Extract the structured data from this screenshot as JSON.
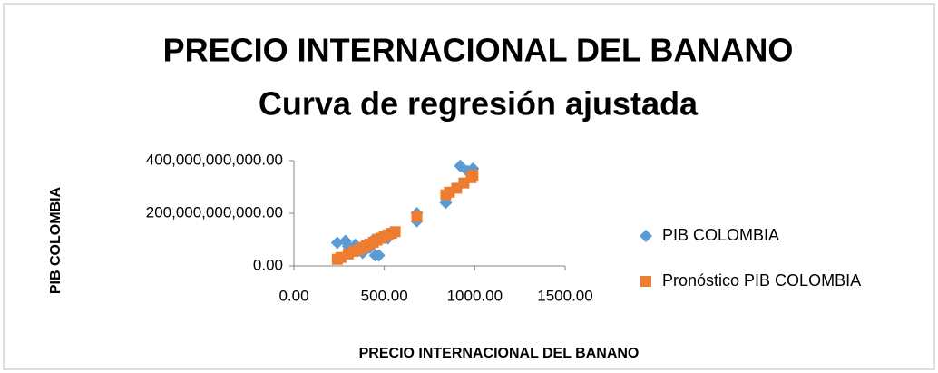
{
  "chart_data": {
    "type": "scatter",
    "title": [
      "PRECIO INTERNACIONAL DEL BANANO",
      "Curva de regresión ajustada"
    ],
    "x_label": "PRECIO INTERNACIONAL DEL BANANO",
    "y_label": "PIB COLOMBIA",
    "xlim": [
      0,
      1500
    ],
    "xticks": [
      {
        "value": 0,
        "label": "0.00"
      },
      {
        "value": 500,
        "label": "500.00"
      },
      {
        "value": 1000,
        "label": "1000.00"
      },
      {
        "value": 1500,
        "label": "1500.00"
      }
    ],
    "ylim": [
      0,
      400000000000
    ],
    "yticks": [
      {
        "value": 0,
        "label": "0.00"
      },
      {
        "value": 200000000000,
        "label": "200,000,000,000.00"
      },
      {
        "value": 400000000000,
        "label": "400,000,000,000.00"
      }
    ],
    "legend": "right",
    "series": [
      {
        "name": "PIB COLOMBIA",
        "color": "#5b9bd5",
        "marker": "diamond",
        "x": [
          240,
          285,
          300,
          340,
          380,
          420,
          440,
          450,
          470,
          490,
          520,
          530,
          680,
          680,
          840,
          850,
          920,
          960,
          990
        ],
        "values": [
          88000000000,
          95000000000,
          75000000000,
          80000000000,
          50000000000,
          70000000000,
          100000000000,
          40000000000,
          40000000000,
          110000000000,
          105000000000,
          120000000000,
          200000000000,
          170000000000,
          240000000000,
          270000000000,
          380000000000,
          360000000000,
          370000000000
        ]
      },
      {
        "name": "Pronóstico PIB COLOMBIA",
        "color": "#ed7d31",
        "marker": "square",
        "x": [
          240,
          260,
          300,
          330,
          360,
          380,
          400,
          420,
          440,
          460,
          480,
          500,
          520,
          540,
          560,
          680,
          840,
          860,
          900,
          940,
          980,
          990
        ],
        "values": [
          25000000000,
          32000000000,
          45000000000,
          55000000000,
          62000000000,
          70000000000,
          76000000000,
          83000000000,
          90000000000,
          98000000000,
          105000000000,
          112000000000,
          118000000000,
          124000000000,
          130000000000,
          188000000000,
          270000000000,
          280000000000,
          295000000000,
          315000000000,
          335000000000,
          345000000000
        ]
      }
    ]
  }
}
